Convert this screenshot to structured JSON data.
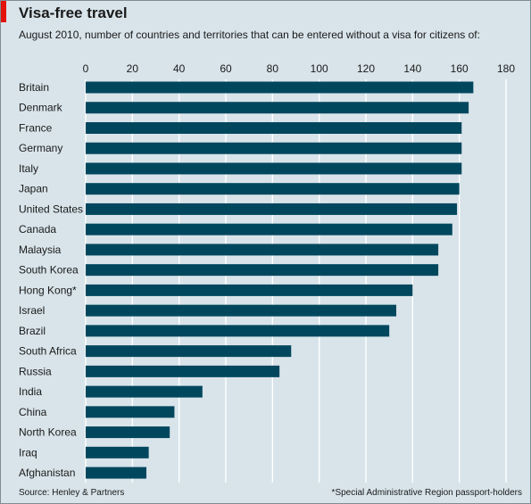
{
  "header": {
    "title": "Visa-free travel",
    "subtitle": "August 2010, number of countries and territories that can be entered without a visa for citizens of:"
  },
  "footer": {
    "source": "Source: Henley & Partners",
    "footnote": "*Special Administrative Region passport-holders"
  },
  "colors": {
    "background": "#d8e4ea",
    "bar": "#00475e",
    "gridline": "#ffffff",
    "accent": "#e3120b"
  },
  "chart_data": {
    "type": "bar",
    "orientation": "horizontal",
    "categories": [
      "Britain",
      "Denmark",
      "France",
      "Germany",
      "Italy",
      "Japan",
      "United States",
      "Canada",
      "Malaysia",
      "South Korea",
      "Hong Kong*",
      "Israel",
      "Brazil",
      "South Africa",
      "Russia",
      "India",
      "China",
      "North Korea",
      "Iraq",
      "Afghanistan"
    ],
    "values": [
      166,
      164,
      161,
      161,
      161,
      160,
      159,
      157,
      151,
      151,
      140,
      133,
      130,
      88,
      83,
      50,
      38,
      36,
      27,
      26
    ],
    "xlim": [
      0,
      180
    ],
    "xticks": [
      0,
      20,
      40,
      60,
      80,
      100,
      120,
      140,
      160,
      180
    ],
    "axis_position": "top",
    "grid": true
  }
}
